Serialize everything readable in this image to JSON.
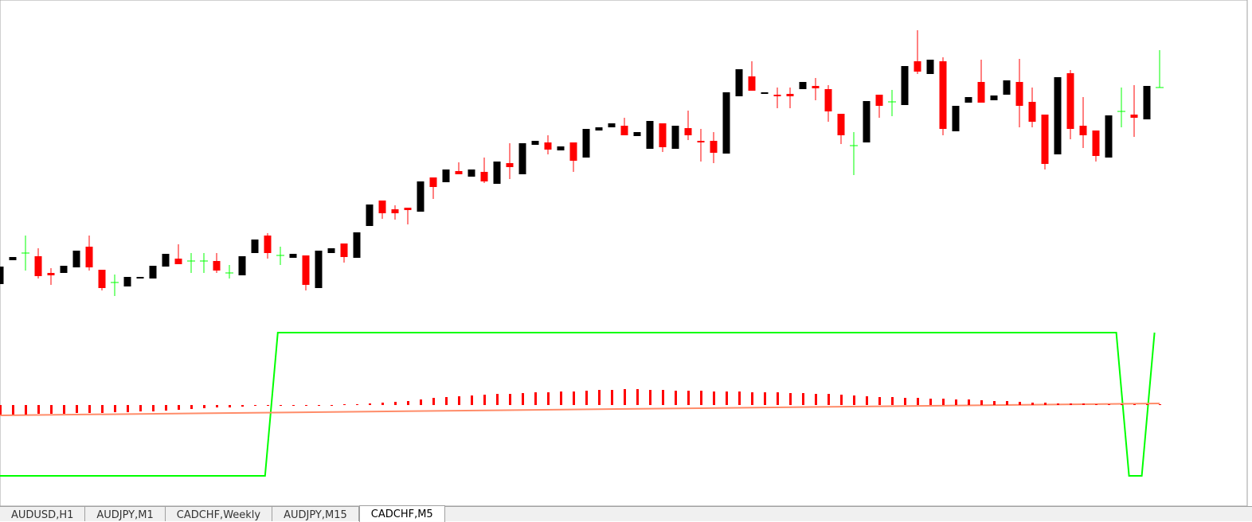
{
  "chart_data": [
    {
      "type": "candlestick",
      "ylim": [
        0,
        400
      ],
      "up_color": "#000000",
      "down_color": "#ff0000",
      "doji_color": "#00ff00",
      "open": [
        43,
        73,
        82,
        78,
        57,
        57,
        64,
        90,
        61,
        45,
        40,
        50,
        50,
        65,
        75,
        72,
        72,
        72,
        57,
        54,
        82,
        104,
        79,
        76,
        79,
        38,
        82,
        94,
        76,
        116,
        148,
        137,
        139,
        134,
        177,
        171,
        185,
        178,
        184,
        169,
        195,
        181,
        218,
        221,
        211,
        221,
        202,
        236,
        240,
        242,
        229,
        213,
        245,
        213,
        239,
        223,
        223,
        207,
        279,
        304,
        282,
        281,
        282,
        288,
        292,
        288,
        257,
        217,
        221,
        281,
        272,
        268,
        323,
        307,
        323,
        235,
        271,
        297,
        274,
        281,
        297,
        272,
        256,
        206,
        308,
        242,
        236,
        202,
        260,
        256,
        250,
        290
      ],
      "high": [
        65,
        77,
        104,
        88,
        63,
        66,
        85,
        104,
        61,
        55,
        52,
        52,
        66,
        81,
        93,
        82,
        82,
        82,
        67,
        78,
        99,
        107,
        90,
        81,
        79,
        85,
        88,
        94,
        108,
        143,
        148,
        142,
        139,
        172,
        177,
        187,
        196,
        187,
        202,
        197,
        220,
        220,
        223,
        230,
        216,
        221,
        238,
        240,
        245,
        252,
        234,
        248,
        245,
        242,
        261,
        238,
        234,
        284,
        313,
        323,
        284,
        290,
        290,
        297,
        302,
        293,
        257,
        234,
        273,
        281,
        287,
        317,
        362,
        325,
        328,
        267,
        278,
        325,
        280,
        299,
        326,
        290,
        256,
        303,
        312,
        278,
        236,
        255,
        290,
        293,
        292,
        337
      ],
      "low": [
        43,
        73,
        60,
        50,
        42,
        57,
        64,
        60,
        35,
        28,
        40,
        50,
        50,
        65,
        68,
        57,
        57,
        57,
        50,
        54,
        82,
        75,
        67,
        76,
        35,
        38,
        82,
        70,
        76,
        116,
        125,
        124,
        118,
        134,
        150,
        171,
        181,
        178,
        170,
        169,
        175,
        181,
        218,
        206,
        211,
        184,
        202,
        236,
        240,
        230,
        229,
        213,
        209,
        213,
        224,
        197,
        195,
        207,
        279,
        286,
        282,
        264,
        264,
        288,
        274,
        247,
        219,
        180,
        221,
        252,
        254,
        268,
        307,
        307,
        230,
        235,
        271,
        271,
        274,
        281,
        240,
        240,
        187,
        206,
        225,
        214,
        197,
        202,
        240,
        228,
        250,
        290
      ],
      "close": [
        65,
        77,
        82,
        53,
        54,
        66,
        85,
        64,
        38,
        45,
        52,
        52,
        66,
        81,
        68,
        72,
        72,
        60,
        57,
        78,
        99,
        82,
        79,
        81,
        42,
        85,
        88,
        77,
        108,
        143,
        132,
        132,
        136,
        172,
        165,
        187,
        181,
        187,
        172,
        197,
        190,
        220,
        223,
        212,
        216,
        198,
        238,
        240,
        245,
        230,
        234,
        248,
        215,
        242,
        230,
        221,
        208,
        284,
        313,
        286,
        284,
        279,
        279,
        297,
        289,
        260,
        230,
        217,
        273,
        267,
        272,
        317,
        310,
        325,
        238,
        267,
        278,
        271,
        280,
        299,
        267,
        247,
        194,
        303,
        238,
        230,
        204,
        255,
        260,
        252,
        292,
        290
      ]
    },
    {
      "type": "indicator",
      "ylim": [
        0,
        190
      ],
      "y2lim": [
        -91,
        99
      ],
      "series": [
        {
          "type": "line",
          "color": "#00ff00",
          "x": [
            0,
            20.8,
            21.8,
            87.6,
            88.6,
            89.6,
            90.6
          ],
          "values": [
            2,
            2,
            182,
            182,
            2,
            2,
            182
          ]
        },
        {
          "type": "line",
          "color": "#ff8c69",
          "x": [
            0,
            91
          ],
          "values": [
            78,
            93
          ]
        },
        {
          "type": "bar",
          "axis": "y2",
          "color": "#ff0000",
          "values": [
            -12,
            -12,
            -12,
            -11,
            -11,
            -11,
            -10,
            -10,
            -10,
            -9,
            -9,
            -8,
            -8,
            -7,
            -6,
            -5,
            -4,
            -3,
            -3,
            -2,
            -1,
            -1,
            -1,
            0,
            0,
            0,
            0,
            1,
            1,
            2,
            3,
            4,
            5,
            7,
            9,
            10,
            11,
            12,
            13,
            14,
            14,
            15,
            16,
            16,
            17,
            17,
            18,
            19,
            19,
            20,
            20,
            19,
            19,
            18,
            18,
            18,
            17,
            17,
            17,
            16,
            16,
            16,
            15,
            15,
            14,
            14,
            13,
            12,
            11,
            10,
            10,
            9,
            9,
            8,
            8,
            7,
            7,
            6,
            5,
            5,
            4,
            3,
            3,
            2,
            2,
            2,
            1,
            1,
            1,
            1,
            1,
            1
          ]
        }
      ]
    }
  ],
  "tabs": [
    "AUDUSD,H1",
    "AUDJPY,M1",
    "CADCHF,Weekly",
    "AUDJPY,M15",
    "CADCHF,M5"
  ],
  "active_tab": 4
}
